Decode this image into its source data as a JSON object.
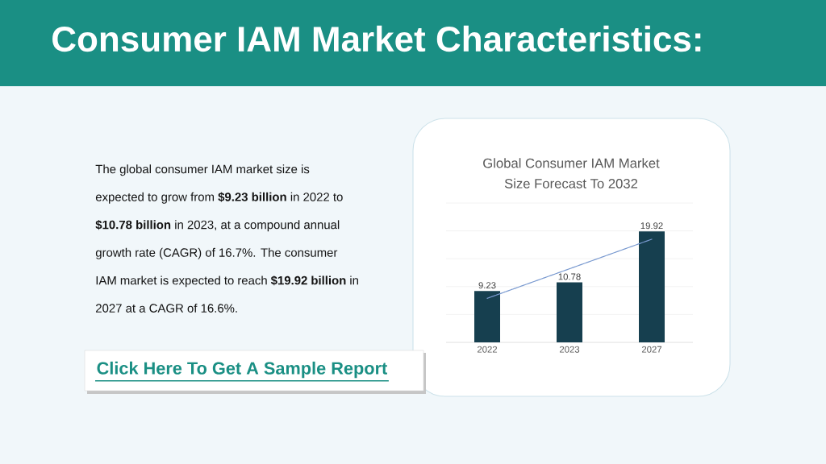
{
  "chart_data": {
    "type": "bar",
    "title": "Global Consumer IAM Market Size Forecast To 2032",
    "categories": [
      "2022",
      "2023",
      "2027"
    ],
    "series": [
      {
        "color": "#163f4f",
        "values": [
          9.23,
          10.78,
          19.92
        ],
        "value_labels": [
          "9.23",
          "10.78",
          "19.92"
        ]
      },
      {
        "type": "line",
        "color": "#7a9ad0",
        "values": [
          7.9,
          13.2,
          18.5
        ],
        "line_style": "dotted",
        "marker": "none"
      }
    ],
    "ylim": [
      0,
      25
    ],
    "yticks": [
      {
        "value": 0,
        "label": null
      },
      {
        "value": 5,
        "label": null
      },
      {
        "value": 10,
        "label": null
      },
      {
        "value": 15,
        "label": null
      },
      {
        "value": 20,
        "label": null
      },
      {
        "value": 25,
        "label": null
      }
    ],
    "grid": "y",
    "tick_labels": "x",
    "annotations": [
      "Consumer IAM Market Characteristics:",
      "The global consumer IAM market size is expected to grow from **$9.23 billion** in 2022 to **$10.78 billion** in 2023, at a compound annual growth rate (CAGR) of 16.7%. The consumer IAM market is expected to reach **$19.92 billion** in 2027 at a CAGR of 16.6%.",
      "Click Here To Get A Sample Report"
    ]
  }
}
